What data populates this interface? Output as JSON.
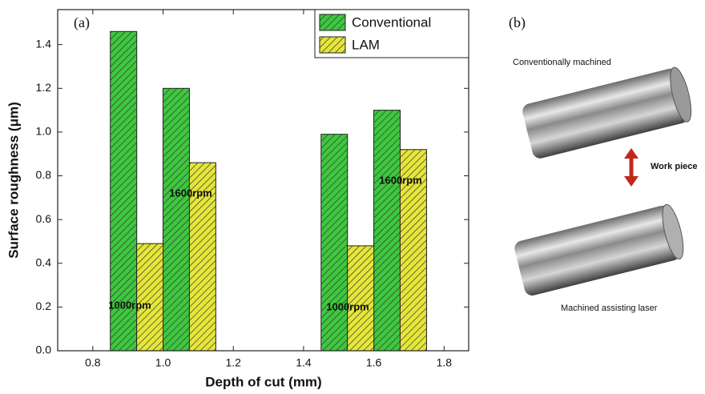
{
  "chart_data": {
    "type": "bar",
    "panel_label": "(a)",
    "xlabel": "Depth of cut (mm)",
    "ylabel": "Surface roughness (μm)",
    "xlim": [
      0.7,
      1.87
    ],
    "ylim": [
      0,
      1.56
    ],
    "xticks": [
      0.8,
      {
        "value": 1.0,
        "label": "1.0"
      },
      1.2,
      1.4,
      1.6,
      1.8
    ],
    "yticks": [
      {
        "value": 0,
        "label": "0.0"
      },
      0.2,
      0.4,
      0.6,
      0.8,
      {
        "value": 1.0,
        "label": "1.0"
      },
      1.2,
      1.4
    ],
    "series": [
      {
        "name": "Conventional",
        "color": "#3ec83e",
        "x": [
          0.8875,
          1.0375,
          1.4875,
          1.6375
        ],
        "values": [
          1.46,
          1.2,
          0.99,
          1.1
        ]
      },
      {
        "name": "LAM",
        "color": "#e6e63a",
        "x": [
          0.9625,
          1.1125,
          1.5625,
          1.7125
        ],
        "values": [
          0.49,
          0.86,
          0.48,
          0.92
        ]
      }
    ],
    "annotations": [
      "1000rpm",
      "1600rpm",
      "1000rpm",
      "1600rpm"
    ],
    "legend": "upper right"
  },
  "photo": {
    "panel_label": "(b)",
    "top_caption": "Conventionally machined",
    "arrow_label": "Work piece",
    "bottom_caption": "Machined assisting laser"
  }
}
